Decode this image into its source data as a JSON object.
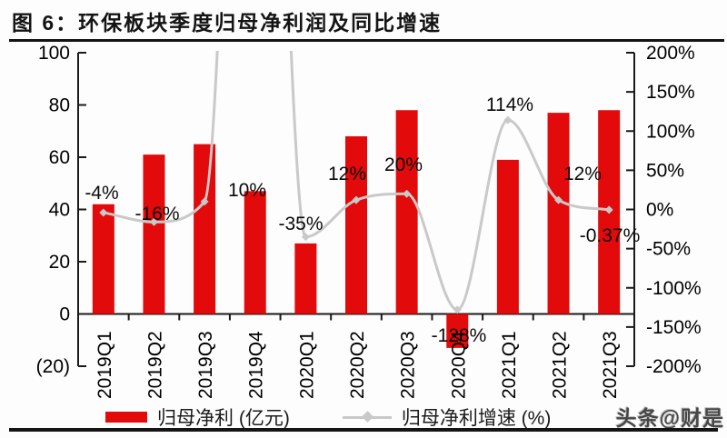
{
  "title": "图 6：环保板块季度归母净利润及同比增速",
  "watermark": "头条@财是",
  "legend": {
    "bar_label": "归母净利 (亿元)",
    "line_label": "归母净利增速 (%)"
  },
  "colors": {
    "bar_red": "#e20a0a",
    "line_gray": "#c9c9c9",
    "label_black": "#0a0a0a",
    "axis_black": "#1a1a1a",
    "rule_black": "#141414"
  },
  "chart_data": {
    "type": "bar",
    "subtype": "combo-bar-line-dual-axis",
    "title": "环保板块季度归母净利润及同比增速",
    "categories": [
      "2019Q1",
      "2019Q2",
      "2019Q3",
      "2019Q4",
      "2020Q1",
      "2020Q2",
      "2020Q3",
      "2020Q4",
      "2021Q1",
      "2021Q2",
      "2021Q3"
    ],
    "series": [
      {
        "name": "归母净利 (亿元)",
        "type": "bar",
        "axis": "left",
        "values": [
          42,
          61,
          65,
          47,
          27,
          68,
          78,
          -13,
          59,
          77,
          78
        ]
      },
      {
        "name": "归母净利增速 (%)",
        "type": "line",
        "axis": "right",
        "values": [
          -4,
          -16,
          10,
          null,
          -35,
          12,
          20,
          -128,
          114,
          12,
          -0.37
        ],
        "point_labels": [
          "-4%",
          "-16%",
          "10%",
          "",
          "-35%",
          "12%",
          "20%",
          "-128%",
          "114%",
          "12%",
          "-0.37%"
        ],
        "note": "2019Q4 point spikes above the +200% axis maximum and is unlabeled/off-scale"
      }
    ],
    "left_axis": {
      "min": -20,
      "max": 100,
      "tick_values": [
        100,
        80,
        60,
        40,
        20,
        0,
        -20
      ],
      "tick_labels": [
        "100",
        "80",
        "60",
        "40",
        "20",
        "0",
        "(20)"
      ]
    },
    "right_axis": {
      "min": -200,
      "max": 200,
      "tick_values": [
        200,
        150,
        100,
        50,
        0,
        -50,
        -100,
        -150,
        -200
      ],
      "tick_labels": [
        "200%",
        "150%",
        "100%",
        "50%",
        "0%",
        "-50%",
        "-100%",
        "-150%",
        "-200%"
      ]
    },
    "grid": false,
    "legend_position": "bottom"
  }
}
